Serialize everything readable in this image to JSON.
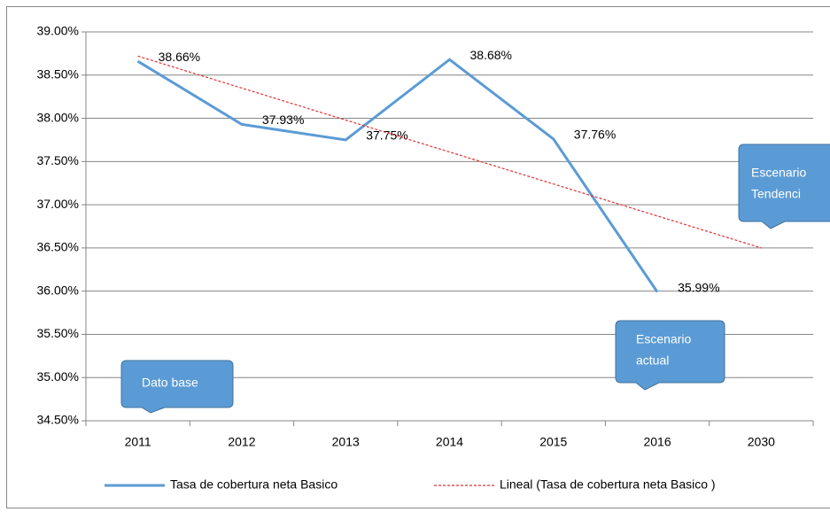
{
  "chart_data": {
    "type": "line",
    "categories": [
      "2011",
      "2012",
      "2013",
      "2014",
      "2015",
      "2016",
      "2030"
    ],
    "series": [
      {
        "name": "Tasa de cobertura neta Basico",
        "color": "#5b9bd5",
        "values": [
          38.66,
          37.93,
          37.75,
          38.68,
          37.76,
          35.99,
          null
        ],
        "value_labels": [
          "38.66%",
          "37.93%",
          "37.75%",
          "38.68%",
          "37.76%",
          "35.99%",
          null
        ]
      },
      {
        "name": "Lineal (Tasa de cobertura neta Basico )",
        "color": "#e03030",
        "dashed": true,
        "values": [
          38.72,
          38.35,
          37.98,
          37.61,
          37.24,
          36.87,
          36.5
        ]
      }
    ],
    "ylim": [
      34.5,
      39
    ],
    "yticks": [
      {
        "value": 34.5,
        "label": "34.50%"
      },
      {
        "value": 35,
        "label": "35.00%"
      },
      {
        "value": 35.5,
        "label": "35.50%"
      },
      {
        "value": 36,
        "label": "36.00%"
      },
      {
        "value": 36.5,
        "label": "36.50%"
      },
      {
        "value": 37,
        "label": "37.00%"
      },
      {
        "value": 37.5,
        "label": "37.50%"
      },
      {
        "value": 38,
        "label": "38.00%"
      },
      {
        "value": 38.5,
        "label": "38.50%"
      },
      {
        "value": 39,
        "label": "39.00%"
      }
    ],
    "grid": true,
    "legend": "bottom",
    "annotations": [
      {
        "lines": [
          "Dato base"
        ]
      },
      {
        "lines": [
          "Escenario",
          "actual"
        ]
      },
      {
        "lines": [
          "Escenario",
          "Tendenci"
        ]
      }
    ]
  }
}
